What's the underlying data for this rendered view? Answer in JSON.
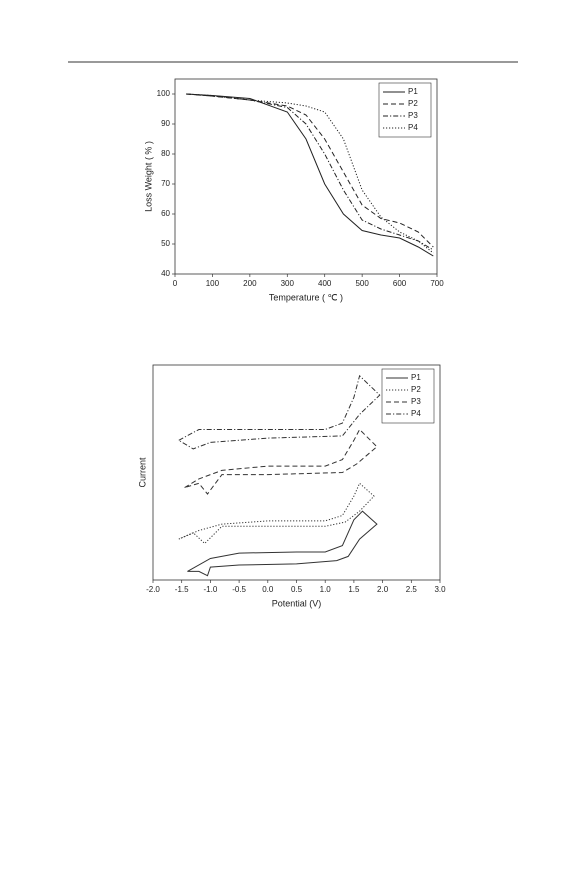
{
  "chart_data": [
    {
      "type": "line",
      "xlabel": "Temperature ( ℃ )",
      "ylabel": "Loss Weight ( % )",
      "x": [
        30,
        100,
        200,
        300,
        350,
        400,
        450,
        500,
        550,
        600,
        650,
        690
      ],
      "xlim": [
        0,
        700
      ],
      "xticks": [
        0,
        100,
        200,
        300,
        400,
        500,
        600,
        700
      ],
      "ylim": [
        40,
        105
      ],
      "yticks": [
        40,
        50,
        60,
        70,
        80,
        90,
        100
      ],
      "legend": "upper right",
      "series": [
        {
          "name": "P1",
          "color": "#222222",
          "line_style": "solid",
          "values": [
            100,
            99.5,
            98.5,
            94,
            85,
            70,
            60,
            54.5,
            53,
            52,
            49,
            46
          ]
        },
        {
          "name": "P2",
          "color": "#222222",
          "line_style": "dashed",
          "values": [
            100,
            99.3,
            98,
            96,
            93,
            85,
            74,
            63,
            58.5,
            57,
            54,
            49
          ]
        },
        {
          "name": "P3",
          "color": "#222222",
          "line_style": "dashdot",
          "values": [
            100,
            99.3,
            98,
            95.5,
            90,
            80,
            68,
            58,
            55,
            53,
            51,
            48
          ]
        },
        {
          "name": "P4",
          "color": "#222222",
          "line_style": "dotted",
          "values": [
            100,
            99.5,
            98,
            97,
            96,
            94,
            85,
            68,
            59,
            54,
            51,
            47
          ]
        }
      ]
    },
    {
      "type": "line",
      "xlabel": "Potential (V)",
      "ylabel": "Current",
      "xlim": [
        -2,
        3
      ],
      "xticks": [
        {
          "value": -2,
          "label": "-2.0"
        },
        -1.5,
        {
          "value": -1,
          "label": "-1.0"
        },
        -0.5,
        {
          "value": 0,
          "label": "0.0"
        },
        0.5,
        {
          "value": 1,
          "label": "1.0"
        },
        1.5,
        {
          "value": 2,
          "label": "2.0"
        },
        2.5,
        {
          "value": 3,
          "label": "3.0"
        }
      ],
      "ylim": [
        0,
        10
      ],
      "legend": "upper right",
      "series": [
        {
          "name": "P1",
          "color": "#333333",
          "line_style": "solid",
          "x": [
            -1.4,
            -1.0,
            -0.5,
            0.5,
            1.0,
            1.3,
            1.5,
            1.65,
            1.9,
            1.6,
            1.4,
            1.2,
            0.5,
            -0.5,
            -1.0,
            -1.05,
            -1.2,
            -1.4
          ],
          "values": [
            0.4,
            1.0,
            1.25,
            1.3,
            1.3,
            1.6,
            2.8,
            3.2,
            2.6,
            1.9,
            1.1,
            0.9,
            0.75,
            0.7,
            0.6,
            0.2,
            0.4,
            0.4
          ]
        },
        {
          "name": "P2",
          "color": "#333333",
          "line_style": "dotted",
          "x": [
            -1.55,
            -1.2,
            -0.8,
            0,
            1.0,
            1.3,
            1.5,
            1.6,
            1.85,
            1.6,
            1.35,
            1.0,
            0,
            -0.8,
            -1.1,
            -1.3,
            -1.55
          ],
          "values": [
            1.9,
            2.3,
            2.6,
            2.75,
            2.75,
            3.0,
            3.9,
            4.5,
            3.9,
            3.2,
            2.7,
            2.5,
            2.5,
            2.5,
            1.7,
            2.2,
            1.9
          ]
        },
        {
          "name": "P3",
          "color": "#333333",
          "line_style": "dashed",
          "x": [
            -1.45,
            -1.2,
            -0.8,
            0,
            1.0,
            1.3,
            1.5,
            1.6,
            1.9,
            1.55,
            1.3,
            0,
            -0.8,
            -1.05,
            -1.2,
            -1.45
          ],
          "values": [
            4.3,
            4.7,
            5.1,
            5.3,
            5.3,
            5.6,
            6.5,
            7.0,
            6.2,
            5.4,
            5.0,
            4.9,
            4.9,
            4.0,
            4.5,
            4.3
          ]
        },
        {
          "name": "P4",
          "color": "#333333",
          "line_style": "dashdot",
          "x": [
            -1.55,
            -1.2,
            -0.8,
            0,
            1.0,
            1.3,
            1.5,
            1.6,
            1.95,
            1.6,
            1.3,
            0,
            -1.0,
            -1.3,
            -1.55
          ],
          "values": [
            6.5,
            7.0,
            7.0,
            7.0,
            7.0,
            7.3,
            8.5,
            9.5,
            8.6,
            7.7,
            6.7,
            6.6,
            6.4,
            6.1,
            6.5
          ]
        }
      ]
    }
  ]
}
